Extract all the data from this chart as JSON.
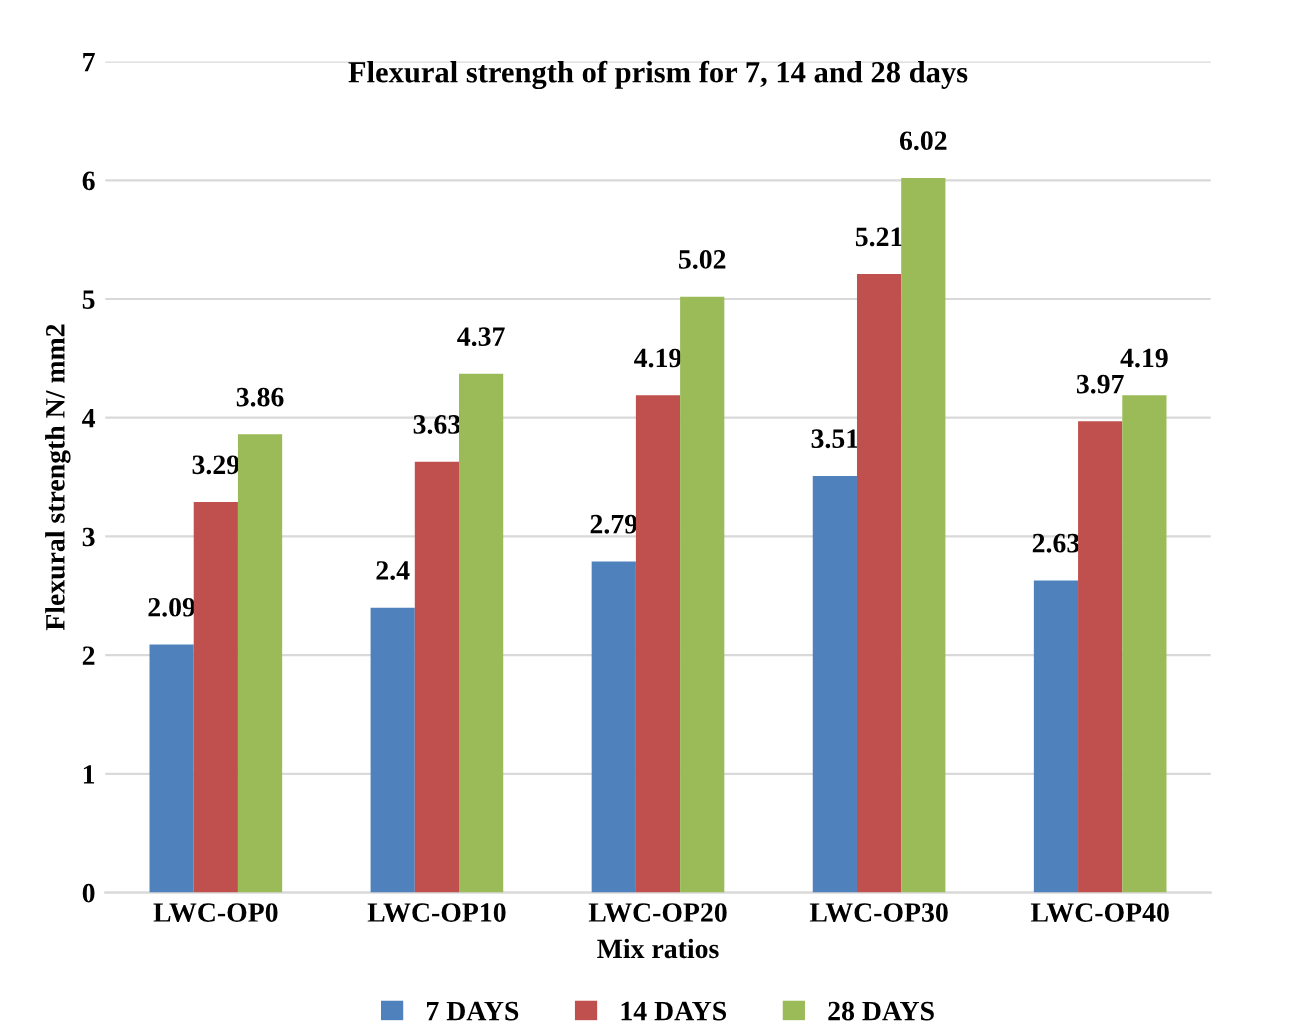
{
  "chart_data": {
    "type": "bar",
    "title": "Flexural strength of prism for 7, 14 and 28 days",
    "xlabel": "Mix ratios",
    "ylabel": "Flexural strength N/ mm2",
    "categories": [
      "LWC-OP0",
      "LWC-OP10",
      "LWC-OP20",
      "LWC-OP30",
      "LWC-OP40"
    ],
    "series": [
      {
        "name": "7 DAYS",
        "color": "#4f81bd",
        "values": [
          2.09,
          2.4,
          2.79,
          3.51,
          2.63
        ]
      },
      {
        "name": "14 DAYS",
        "color": "#c0504d",
        "values": [
          3.29,
          3.63,
          4.19,
          5.21,
          3.97
        ]
      },
      {
        "name": "28 DAYS",
        "color": "#9bbb59",
        "values": [
          3.86,
          4.37,
          5.02,
          6.02,
          4.19
        ]
      }
    ],
    "ylim": [
      0,
      7
    ],
    "yticks": [
      0,
      1,
      2,
      3,
      4,
      5,
      6,
      7
    ],
    "grid": "y",
    "legend": "bottom",
    "data_labels": true
  }
}
